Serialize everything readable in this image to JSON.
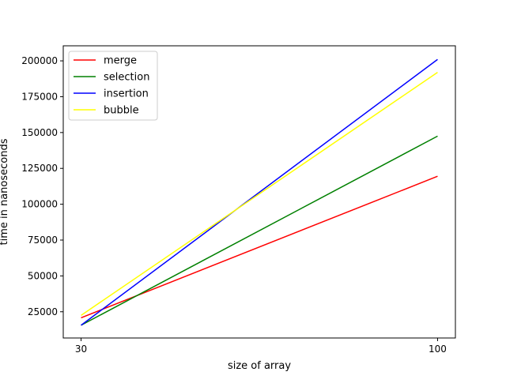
{
  "chart_data": {
    "type": "line",
    "title": "",
    "xlabel": "size of array",
    "ylabel": "time in nanoseconds",
    "x": [
      30,
      100
    ],
    "xticks": [
      30,
      100
    ],
    "xtick_labels": [
      "30",
      "100"
    ],
    "xlim": [
      26.5,
      103.5
    ],
    "yticks": [
      25000,
      50000,
      75000,
      100000,
      125000,
      150000,
      175000,
      200000
    ],
    "ytick_labels": [
      "25000",
      "50000",
      "75000",
      "100000",
      "125000",
      "150000",
      "175000",
      "200000"
    ],
    "ylim": [
      6700,
      210500
    ],
    "grid": false,
    "legend_position": "upper-left",
    "series": [
      {
        "name": "merge",
        "color": "#ff0000",
        "values": [
          20800,
          119500
        ]
      },
      {
        "name": "selection",
        "color": "#008000",
        "values": [
          15600,
          147500
        ]
      },
      {
        "name": "insertion",
        "color": "#0000ff",
        "values": [
          15600,
          201000
        ]
      },
      {
        "name": "bubble",
        "color": "#ffff00",
        "values": [
          22500,
          192000
        ]
      }
    ]
  }
}
